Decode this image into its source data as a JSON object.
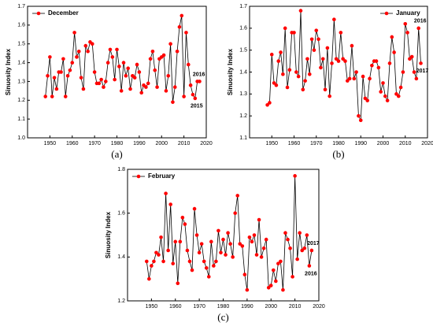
{
  "chart_data": [
    {
      "type": "line",
      "label": "(a)",
      "ylabel": "Sinuosity Index",
      "legend": "upper left",
      "x": [
        1948,
        1949,
        1950,
        1951,
        1952,
        1953,
        1954,
        1955,
        1956,
        1957,
        1958,
        1959,
        1960,
        1961,
        1962,
        1963,
        1964,
        1965,
        1966,
        1967,
        1968,
        1969,
        1970,
        1971,
        1972,
        1973,
        1974,
        1975,
        1976,
        1977,
        1978,
        1979,
        1980,
        1981,
        1982,
        1983,
        1984,
        1985,
        1986,
        1987,
        1988,
        1989,
        1990,
        1991,
        1992,
        1993,
        1994,
        1995,
        1996,
        1997,
        1998,
        1999,
        2000,
        2001,
        2002,
        2003,
        2004,
        2005,
        2006,
        2007,
        2008,
        2009,
        2010,
        2011,
        2012,
        2013,
        2014,
        2015,
        2016,
        2017
      ],
      "series": [
        {
          "name": "December",
          "color": "#ff0000",
          "values": [
            1.22,
            1.33,
            1.43,
            1.22,
            1.32,
            1.26,
            1.35,
            1.35,
            1.42,
            1.22,
            1.33,
            1.36,
            1.4,
            1.56,
            1.43,
            1.46,
            1.32,
            1.26,
            1.49,
            1.46,
            1.51,
            1.5,
            1.35,
            1.29,
            1.29,
            1.31,
            1.27,
            1.3,
            1.4,
            1.47,
            1.43,
            1.31,
            1.47,
            1.38,
            1.25,
            1.4,
            1.33,
            1.37,
            1.26,
            1.33,
            1.32,
            1.39,
            1.35,
            1.24,
            1.28,
            1.27,
            1.29,
            1.42,
            1.46,
            1.36,
            1.27,
            1.42,
            1.43,
            1.44,
            1.25,
            1.33,
            1.5,
            1.19,
            1.27,
            1.46,
            1.59,
            1.65,
            1.22,
            1.56,
            1.39,
            1.28,
            1.23,
            1.21,
            1.3,
            1.3
          ]
        }
      ],
      "annotations": [
        2016,
        2015
      ],
      "xlim": [
        1940,
        2020
      ],
      "xticks": [
        1950,
        1960,
        1970,
        1980,
        1990,
        2000,
        2010,
        2020
      ],
      "ylim": [
        1.0,
        1.7
      ],
      "yticks": [
        {
          "value": 1.0,
          "label": "1.0"
        },
        1.1,
        1.2,
        1.3,
        1.4,
        1.5,
        1.6,
        1.7
      ]
    },
    {
      "type": "line",
      "label": "(b)",
      "ylabel": "Sinuosity Index",
      "legend": "upper right",
      "x": [
        1948,
        1949,
        1950,
        1951,
        1952,
        1953,
        1954,
        1955,
        1956,
        1957,
        1958,
        1959,
        1960,
        1961,
        1962,
        1963,
        1964,
        1965,
        1966,
        1967,
        1968,
        1969,
        1970,
        1971,
        1972,
        1973,
        1974,
        1975,
        1976,
        1977,
        1978,
        1979,
        1980,
        1981,
        1982,
        1983,
        1984,
        1985,
        1986,
        1987,
        1988,
        1989,
        1990,
        1991,
        1992,
        1993,
        1994,
        1995,
        1996,
        1997,
        1998,
        1999,
        2000,
        2001,
        2002,
        2003,
        2004,
        2005,
        2006,
        2007,
        2008,
        2009,
        2010,
        2011,
        2012,
        2013,
        2014,
        2015,
        2016,
        2017
      ],
      "series": [
        {
          "name": "January",
          "color": "#ff0000",
          "values": [
            1.25,
            1.26,
            1.48,
            1.35,
            1.34,
            1.45,
            1.49,
            1.39,
            1.6,
            1.33,
            1.41,
            1.58,
            1.58,
            1.4,
            1.38,
            1.68,
            1.32,
            1.36,
            1.46,
            1.39,
            1.55,
            1.5,
            1.59,
            1.55,
            1.42,
            1.46,
            1.32,
            1.51,
            1.29,
            1.44,
            1.64,
            1.46,
            1.45,
            1.58,
            1.46,
            1.45,
            1.36,
            1.37,
            1.52,
            1.37,
            1.4,
            1.2,
            1.18,
            1.38,
            1.28,
            1.27,
            1.37,
            1.43,
            1.45,
            1.45,
            1.42,
            1.31,
            1.35,
            1.29,
            1.27,
            1.44,
            1.56,
            1.49,
            1.3,
            1.29,
            1.33,
            1.4,
            1.62,
            1.58,
            1.46,
            1.47,
            1.4,
            1.37,
            1.6,
            1.44
          ]
        }
      ],
      "annotations": [
        2016,
        2017
      ],
      "xlim": [
        1940,
        2020
      ],
      "xticks": [
        1950,
        1960,
        1970,
        1980,
        1990,
        2000,
        2010,
        2020
      ],
      "ylim": [
        1.1,
        1.7
      ],
      "yticks": [
        1.1,
        1.2,
        1.3,
        1.4,
        1.5,
        1.6,
        1.7
      ]
    },
    {
      "type": "line",
      "label": "(c)",
      "ylabel": "Sinuosity Index",
      "legend": "upper left",
      "x": [
        1948,
        1949,
        1950,
        1951,
        1952,
        1953,
        1954,
        1955,
        1956,
        1957,
        1958,
        1959,
        1960,
        1961,
        1962,
        1963,
        1964,
        1965,
        1966,
        1967,
        1968,
        1969,
        1970,
        1971,
        1972,
        1973,
        1974,
        1975,
        1976,
        1977,
        1978,
        1979,
        1980,
        1981,
        1982,
        1983,
        1984,
        1985,
        1986,
        1987,
        1988,
        1989,
        1990,
        1991,
        1992,
        1993,
        1994,
        1995,
        1996,
        1997,
        1998,
        1999,
        2000,
        2001,
        2002,
        2003,
        2004,
        2005,
        2006,
        2007,
        2008,
        2009,
        2010,
        2011,
        2012,
        2013,
        2014,
        2015,
        2016,
        2017
      ],
      "series": [
        {
          "name": "February",
          "color": "#ff0000",
          "values": [
            1.38,
            1.3,
            1.36,
            1.38,
            1.42,
            1.41,
            1.49,
            1.38,
            1.69,
            1.43,
            1.64,
            1.37,
            1.47,
            1.28,
            1.47,
            1.58,
            1.55,
            1.43,
            1.38,
            1.34,
            1.62,
            1.5,
            1.42,
            1.46,
            1.38,
            1.35,
            1.31,
            1.47,
            1.36,
            1.38,
            1.52,
            1.42,
            1.48,
            1.41,
            1.51,
            1.46,
            1.4,
            1.6,
            1.68,
            1.46,
            1.45,
            1.32,
            1.25,
            1.49,
            1.47,
            1.5,
            1.41,
            1.57,
            1.4,
            1.44,
            1.48,
            1.26,
            1.27,
            1.34,
            1.29,
            1.37,
            1.38,
            1.25,
            1.51,
            1.48,
            1.44,
            1.31,
            1.77,
            1.39,
            1.51,
            1.43,
            1.44,
            1.5,
            1.36,
            1.43
          ]
        }
      ],
      "annotations": [
        2017,
        2016
      ],
      "xlim": [
        1940,
        2020
      ],
      "xticks": [
        1950,
        1960,
        1970,
        1980,
        1990,
        2000,
        2010,
        2020
      ],
      "ylim": [
        1.2,
        1.8
      ],
      "yticks": [
        1.2,
        1.4,
        1.6,
        1.8
      ]
    }
  ]
}
